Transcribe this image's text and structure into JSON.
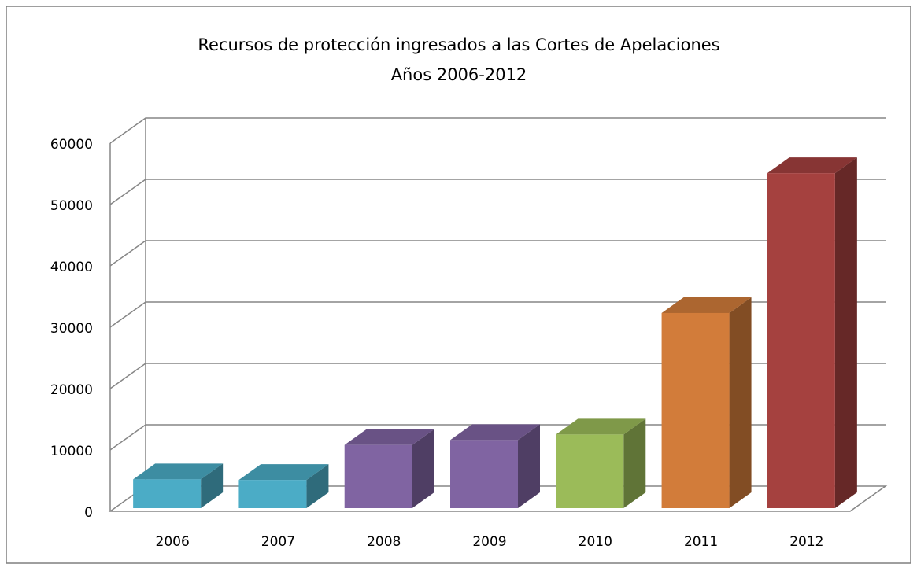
{
  "chart_data": {
    "type": "bar3d",
    "title": [
      "Recursos de protección ingresados a las Cortes de Apelaciones",
      "Años 2006-2012"
    ],
    "categories": [
      "2006",
      "2007",
      "2008",
      "2009",
      "2010",
      "2011",
      "2012"
    ],
    "values": [
      4700,
      4600,
      10300,
      11100,
      12000,
      31800,
      54600
    ],
    "colors": [
      "#4bacc6",
      "#4bacc6",
      "#8064a2",
      "#8064a2",
      "#9bbb59",
      "#d27c3a",
      "#a5413f"
    ],
    "ylim": [
      0,
      60000
    ],
    "yticks": [
      0,
      10000,
      20000,
      30000,
      40000,
      50000,
      60000
    ],
    "grid": true
  }
}
